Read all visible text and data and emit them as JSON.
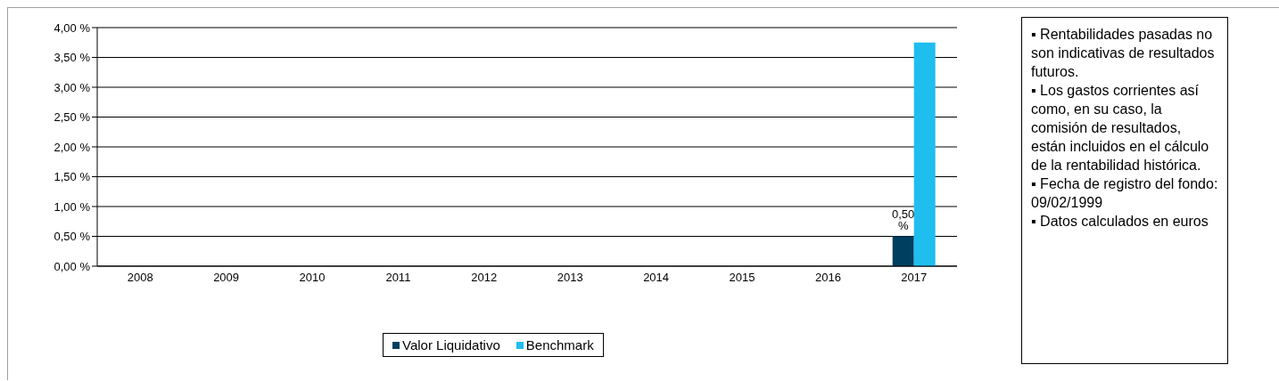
{
  "chart_data": {
    "type": "bar",
    "categories": [
      "2008",
      "2009",
      "2010",
      "2011",
      "2012",
      "2013",
      "2014",
      "2015",
      "2016",
      "2017"
    ],
    "series": [
      {
        "name": "Valor Liquidativo",
        "color": "#003f5f",
        "values": [
          null,
          null,
          null,
          null,
          null,
          null,
          null,
          null,
          null,
          0.5
        ],
        "value_labels": [
          null,
          null,
          null,
          null,
          null,
          null,
          null,
          null,
          null,
          "0,50 %"
        ]
      },
      {
        "name": "Benchmark",
        "color": "#1fbeef",
        "values": [
          null,
          null,
          null,
          null,
          null,
          null,
          null,
          null,
          null,
          3.75
        ]
      }
    ],
    "ylim": [
      0,
      4
    ],
    "yticks": [
      {
        "value": 0,
        "label": "0,00 %"
      },
      {
        "value": 0.5,
        "label": "0,50 %"
      },
      {
        "value": 1,
        "label": "1,00 %"
      },
      {
        "value": 1.5,
        "label": "1,50 %"
      },
      {
        "value": 2,
        "label": "2,00 %"
      },
      {
        "value": 2.5,
        "label": "2,50 %"
      },
      {
        "value": 3,
        "label": "3,00 %"
      },
      {
        "value": 3.5,
        "label": "3,50 %"
      },
      {
        "value": 4,
        "label": "4,00 %"
      }
    ],
    "grid": "y",
    "legend": "bottom",
    "annotations": [
      "▪ Rentabilidades pasadas no son indicativas de resultados futuros.",
      "▪ Los gastos corrientes así como, en su caso, la comisión de resultados, están incluidos en el cálculo de la rentabilidad histórica.",
      "▪ Fecha de registro del fondo: 09/02/1999",
      "▪ Datos calculados en euros"
    ]
  }
}
